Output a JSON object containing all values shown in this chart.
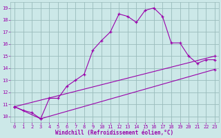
{
  "line1_x": [
    0,
    1,
    2,
    3,
    4,
    5,
    6,
    7,
    8,
    9,
    10,
    11,
    12,
    13,
    14,
    15,
    16,
    17,
    18,
    19,
    20,
    21,
    22,
    23
  ],
  "line1_y": [
    10.8,
    10.5,
    10.3,
    9.8,
    11.5,
    11.5,
    12.5,
    13.0,
    13.5,
    15.5,
    16.3,
    17.0,
    18.5,
    18.3,
    17.8,
    18.8,
    19.0,
    18.3,
    16.1,
    16.1,
    15.0,
    14.4,
    14.7,
    14.7
  ],
  "line2_x": [
    0,
    23
  ],
  "line2_y": [
    10.8,
    15.0
  ],
  "line3_x": [
    0,
    3,
    23
  ],
  "line3_y": [
    10.8,
    9.8,
    13.9
  ],
  "line_color": "#9900aa",
  "bg_color": "#cce8e8",
  "grid_color": "#99bbbb",
  "xlabel": "Windchill (Refroidissement éolien,°C)",
  "xlabel_color": "#9900aa",
  "xlabel_fontsize": 5.5,
  "tick_color": "#9900aa",
  "tick_fontsize": 5,
  "xlim": [
    -0.5,
    23.5
  ],
  "ylim": [
    9.5,
    19.5
  ],
  "yticks": [
    10,
    11,
    12,
    13,
    14,
    15,
    16,
    17,
    18,
    19
  ],
  "xticks": [
    0,
    1,
    2,
    3,
    4,
    5,
    6,
    7,
    8,
    9,
    10,
    11,
    12,
    13,
    14,
    15,
    16,
    17,
    18,
    19,
    20,
    21,
    22,
    23
  ]
}
